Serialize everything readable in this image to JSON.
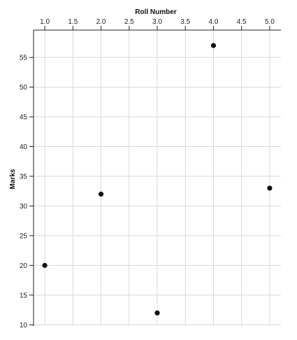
{
  "chart_data": {
    "type": "scatter",
    "xlabel": "Roll Number",
    "ylabel": "Marks",
    "x_axis_position": "top",
    "grid": true,
    "xlim": [
      0.8,
      5.2
    ],
    "ylim": [
      9.8,
      59.6
    ],
    "x_ticks": [
      1.0,
      1.5,
      2.0,
      2.5,
      3.0,
      3.5,
      4.0,
      4.5,
      5.0
    ],
    "x_tick_labels": [
      "1.0",
      "1.5",
      "2.0",
      "2.5",
      "3.0",
      "3.5",
      "4.0",
      "4.5",
      "5.0"
    ],
    "y_ticks": [
      10,
      15,
      20,
      25,
      30,
      35,
      40,
      45,
      50,
      55
    ],
    "y_tick_labels": [
      "10",
      "15",
      "20",
      "25",
      "30",
      "35",
      "40",
      "45",
      "50",
      "55"
    ],
    "points": [
      {
        "x": 1,
        "y": 20
      },
      {
        "x": 2,
        "y": 32
      },
      {
        "x": 3,
        "y": 12
      },
      {
        "x": 4,
        "y": 57
      },
      {
        "x": 5,
        "y": 33
      }
    ],
    "colors": {
      "point": "#111111",
      "grid": "#d9d9d9",
      "axis": "#222222"
    }
  }
}
